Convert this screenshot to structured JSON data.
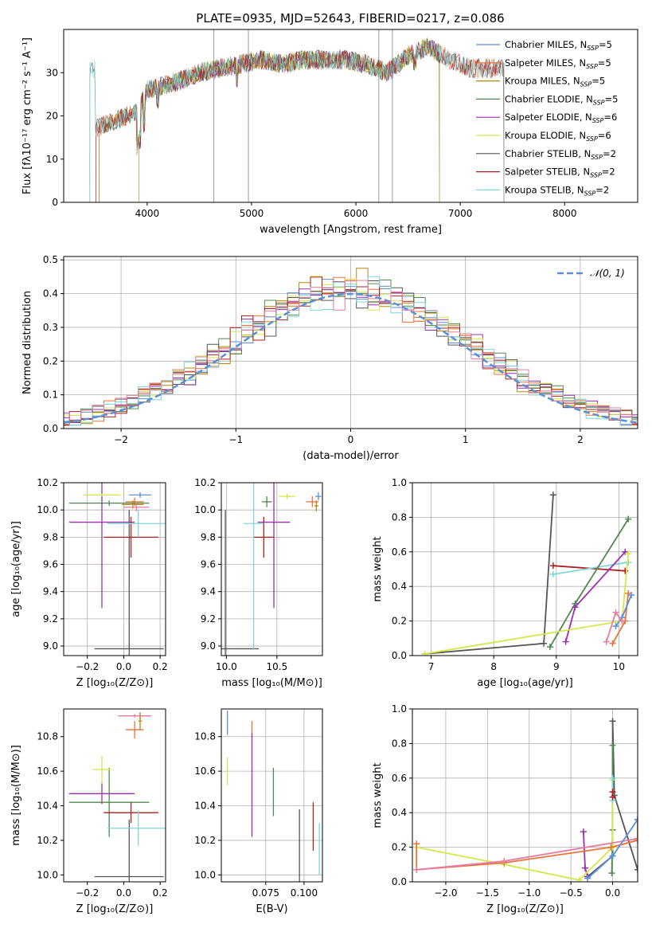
{
  "figure_title": "PLATE=0935, MJD=52643, FIBERID=0217, z=0.086",
  "series_colors": {
    "Chabrier MILES": "#5b8fd6",
    "Salpeter MILES": "#e8733a",
    "Kroupa MILES": "#b8860b",
    "Chabrier ELODIE": "#4f8a4f",
    "Salpeter ELODIE": "#9b2fae",
    "Kroupa ELODIE": "#d4e84a",
    "Chabrier STELIB": "#555555",
    "Salpeter STELIB": "#b01f1f",
    "Kroupa STELIB": "#7fd6d8",
    "Kroupa ELODIE (ages)": "#e87ca0"
  },
  "chart_data": [
    {
      "id": "spectrum",
      "type": "line",
      "xlabel": "wavelength [Angstrom, rest frame]",
      "ylabel": "Flux [fλ10⁻¹⁷ erg cm⁻² s⁻¹ A⁻¹]",
      "xlim": [
        3200,
        8700
      ],
      "ylim": [
        0,
        40
      ],
      "xticks": [
        "4000",
        "5000",
        "6000",
        "7000",
        "8000"
      ],
      "yticks": [
        "0",
        "10",
        "20",
        "30"
      ],
      "legend_position": "top-right",
      "legend": [
        {
          "label": "Chabrier MILES, N",
          "sub": "SSP",
          "suffix": "=5",
          "series": "Chabrier MILES"
        },
        {
          "label": "Salpeter MILES, N",
          "sub": "SSP",
          "suffix": "=5",
          "series": "Salpeter MILES"
        },
        {
          "label": "Kroupa MILES, N",
          "sub": "SSP",
          "suffix": "=5",
          "series": "Kroupa MILES"
        },
        {
          "label": "Chabrier ELODIE, N",
          "sub": "SSP",
          "suffix": "=5",
          "series": "Chabrier ELODIE"
        },
        {
          "label": "Salpeter ELODIE, N",
          "sub": "SSP",
          "suffix": "=6",
          "series": "Salpeter ELODIE"
        },
        {
          "label": "Kroupa ELODIE, N",
          "sub": "SSP",
          "suffix": "=6",
          "series": "Kroupa ELODIE"
        },
        {
          "label": "Chabrier STELIB, N",
          "sub": "SSP",
          "suffix": "=2",
          "series": "Chabrier STELIB"
        },
        {
          "label": "Salpeter STELIB, N",
          "sub": "SSP",
          "suffix": "=2",
          "series": "Salpeter STELIB"
        },
        {
          "label": "Kroupa STELIB, N",
          "sub": "SSP",
          "suffix": "=2",
          "series": "Kroupa STELIB"
        }
      ],
      "continuum_x": [
        3500,
        3700,
        3900,
        4000,
        4150,
        4300,
        4500,
        4700,
        4900,
        5100,
        5300,
        5500,
        5700,
        5900,
        6100,
        6300,
        6500,
        6700,
        6900,
        7100,
        7300
      ],
      "continuum_y": [
        17,
        19,
        21,
        26,
        27,
        28,
        30,
        31,
        32,
        33,
        32,
        33,
        33,
        33,
        32,
        30,
        34,
        36,
        33,
        31,
        31
      ]
    },
    {
      "id": "residuals",
      "type": "histogram",
      "xlabel": "(data-model)/error",
      "ylabel": "Normed distribution",
      "xlim": [
        -2.5,
        2.5
      ],
      "ylim": [
        0,
        0.51
      ],
      "xticks": [
        "−2",
        "−1",
        "0",
        "1",
        "2"
      ],
      "yticks": [
        "0.0",
        "0.1",
        "0.2",
        "0.3",
        "0.4",
        "0.5"
      ],
      "grid": true,
      "legend_position": "top-right",
      "reference_label": "𝒩(0, 1)",
      "bin_width": 0.1
    },
    {
      "id": "age_vs_Z",
      "type": "errorbar",
      "xlabel": "Z [log₁₀(Z/Z⊙)]",
      "ylabel": "age  [log₁₀(age/yr)]",
      "xlim": [
        -0.33,
        0.23
      ],
      "ylim": [
        8.93,
        10.2
      ],
      "xticks": [
        "−0.2",
        "0.0",
        "0.2"
      ],
      "yticks": [
        "9.0",
        "9.2",
        "9.4",
        "9.6",
        "9.8",
        "10.0",
        "10.2"
      ],
      "grid": true,
      "points": [
        {
          "series": "Chabrier MILES",
          "x": 0.09,
          "y": 10.11,
          "xerr": 0.06,
          "yerr": 0.02
        },
        {
          "series": "Salpeter MILES",
          "x": 0.06,
          "y": 10.06,
          "xerr": 0.05,
          "yerr": 0.03
        },
        {
          "series": "Kroupa MILES",
          "x": 0.05,
          "y": 10.04,
          "xerr": 0.06,
          "yerr": 0.03
        },
        {
          "series": "Chabrier ELODIE",
          "x": -0.08,
          "y": 10.05,
          "xerr": 0.22,
          "yerr": 0.02
        },
        {
          "series": "Salpeter ELODIE",
          "x": -0.12,
          "y": 9.91,
          "xerr": 0.18,
          "yerr": 0.63
        },
        {
          "series": "Kroupa ELODIE",
          "x": -0.12,
          "y": 10.11,
          "xerr": 0.1,
          "yerr": 0.01
        },
        {
          "series": "Chabrier STELIB",
          "x": 0.03,
          "y": 8.98,
          "xerr": 0.19,
          "yerr": 1.02
        },
        {
          "series": "Salpeter STELIB",
          "x": 0.04,
          "y": 9.8,
          "xerr": 0.15,
          "yerr": 0.15
        },
        {
          "series": "Kroupa STELIB",
          "x": 0.08,
          "y": 9.9,
          "xerr": 0.17,
          "yerr": 0.1
        },
        {
          "series": "Kroupa ELODIE (ages)",
          "x": 0.07,
          "y": 10.02,
          "xerr": 0.07,
          "yerr": 0.03
        }
      ]
    },
    {
      "id": "age_vs_mass",
      "type": "errorbar",
      "xlabel": "mass [log₁₀(M/M⊙)]",
      "xlim": [
        9.95,
        10.95
      ],
      "ylim": [
        8.93,
        10.2
      ],
      "xticks": [
        "10.0",
        "10.5"
      ],
      "yticks": [
        "9.0",
        "9.2",
        "9.4",
        "9.6",
        "9.8",
        "10.0",
        "10.2"
      ],
      "grid": true,
      "points": [
        {
          "series": "Chabrier MILES",
          "x": 10.91,
          "y": 10.1,
          "xerr": 0.03,
          "yerr": 0.03
        },
        {
          "series": "Salpeter MILES",
          "x": 10.85,
          "y": 10.06,
          "xerr": 0.06,
          "yerr": 0.04
        },
        {
          "series": "Kroupa MILES",
          "x": 10.89,
          "y": 10.03,
          "xerr": 0.02,
          "yerr": 0.04
        },
        {
          "series": "Chabrier ELODIE",
          "x": 10.4,
          "y": 10.06,
          "xerr": 0.05,
          "yerr": 0.04
        },
        {
          "series": "Salpeter ELODIE",
          "x": 10.47,
          "y": 9.91,
          "xerr": 0.16,
          "yerr": 0.63
        },
        {
          "series": "Kroupa ELODIE",
          "x": 10.6,
          "y": 10.1,
          "xerr": 0.08,
          "yerr": 0.02
        },
        {
          "series": "Chabrier STELIB",
          "x": 9.99,
          "y": 8.98,
          "xerr": 0.33,
          "yerr": 1.02
        },
        {
          "series": "Salpeter STELIB",
          "x": 10.37,
          "y": 9.8,
          "xerr": 0.1,
          "yerr": 0.15
        },
        {
          "series": "Kroupa STELIB",
          "x": 10.27,
          "y": 9.9,
          "xerr": 0.1,
          "yerr": 0.93
        }
      ]
    },
    {
      "id": "massweight_vs_age",
      "type": "line",
      "xlabel": "age  [log₁₀(age/yr)]",
      "ylabel": "mass weight",
      "xlim": [
        6.7,
        10.3
      ],
      "ylim": [
        0,
        1
      ],
      "xticks": [
        "7",
        "8",
        "9",
        "10"
      ],
      "yticks": [
        "0.0",
        "0.2",
        "0.4",
        "0.6",
        "0.8",
        "1.0"
      ],
      "grid": true,
      "series": [
        {
          "series": "Chabrier STELIB",
          "x": [
            6.9,
            8.8,
            8.95
          ],
          "y": [
            0.01,
            0.07,
            0.93
          ]
        },
        {
          "series": "Salpeter STELIB",
          "x": [
            8.95,
            10.1
          ],
          "y": [
            0.52,
            0.49
          ]
        },
        {
          "series": "Kroupa STELIB",
          "x": [
            8.95,
            10.15
          ],
          "y": [
            0.47,
            0.54
          ]
        },
        {
          "series": "Chabrier ELODIE",
          "x": [
            8.9,
            9.3,
            10.15
          ],
          "y": [
            0.05,
            0.3,
            0.79
          ]
        },
        {
          "series": "Salpeter ELODIE",
          "x": [
            9.15,
            9.3,
            10.1
          ],
          "y": [
            0.08,
            0.28,
            0.6
          ]
        },
        {
          "series": "Kroupa ELODIE",
          "x": [
            6.9,
            10.05,
            10.15
          ],
          "y": [
            0.01,
            0.2,
            0.59
          ]
        },
        {
          "series": "Salpeter MILES",
          "x": [
            9.9,
            10.1,
            10.15
          ],
          "y": [
            0.07,
            0.2,
            0.36
          ]
        },
        {
          "series": "Chabrier MILES",
          "x": [
            9.95,
            10.05,
            10.2
          ],
          "y": [
            0.17,
            0.22,
            0.35
          ]
        },
        {
          "series": "Kroupa ELODIE (ages)",
          "x": [
            9.8,
            9.95,
            10.05
          ],
          "y": [
            0.08,
            0.25,
            0.2
          ]
        }
      ]
    },
    {
      "id": "mass_vs_Z",
      "type": "errorbar",
      "xlabel": "Z [log₁₀(Z/Z⊙)]",
      "ylabel": "mass [log₁₀(M/M⊙)]",
      "xlim": [
        -0.33,
        0.23
      ],
      "ylim": [
        9.96,
        10.96
      ],
      "xticks": [
        "−0.2",
        "0.0",
        "0.2"
      ],
      "yticks": [
        "10.0",
        "10.2",
        "10.4",
        "10.6",
        "10.8"
      ],
      "grid": false,
      "points": [
        {
          "series": "Chabrier MILES",
          "x": 0.09,
          "y": 10.92,
          "xerr": 0.06,
          "yerr": 0.02
        },
        {
          "series": "Salpeter MILES",
          "x": 0.06,
          "y": 10.84,
          "xerr": 0.05,
          "yerr": 0.05
        },
        {
          "series": "Kroupa MILES",
          "x": 0.09,
          "y": 10.89,
          "xerr": 0.01,
          "yerr": 0.05
        },
        {
          "series": "Chabrier ELODIE",
          "x": -0.08,
          "y": 10.42,
          "xerr": 0.22,
          "yerr": 0.2
        },
        {
          "series": "Salpeter ELODIE",
          "x": -0.12,
          "y": 10.47,
          "xerr": 0.18,
          "yerr": 0.06
        },
        {
          "series": "Kroupa ELODIE",
          "x": -0.12,
          "y": 10.61,
          "xerr": 0.05,
          "yerr": 0.08
        },
        {
          "series": "Chabrier STELIB",
          "x": 0.03,
          "y": 9.99,
          "xerr": 0.19,
          "yerr": 0.33
        },
        {
          "series": "Salpeter STELIB",
          "x": 0.04,
          "y": 10.36,
          "xerr": 0.15,
          "yerr": 0.06
        },
        {
          "series": "Kroupa STELIB",
          "x": 0.08,
          "y": 10.27,
          "xerr": 0.17,
          "yerr": 0.1
        },
        {
          "series": "Kroupa ELODIE (ages)",
          "x": 0.06,
          "y": 10.92,
          "xerr": 0.09,
          "yerr": 0.01
        }
      ]
    },
    {
      "id": "mass_vs_ebv",
      "type": "errorbar",
      "xlabel": "E(B-V)",
      "xlim": [
        0.046,
        0.112
      ],
      "ylim": [
        9.96,
        10.96
      ],
      "xticks": [
        "0.075",
        "0.100"
      ],
      "yticks": [
        "10.0",
        "10.2",
        "10.4",
        "10.6",
        "10.8"
      ],
      "grid": true,
      "points": [
        {
          "series": "Chabrier MILES",
          "x": 0.05,
          "y": 10.88,
          "xerr": 0,
          "yerr": 0.07
        },
        {
          "series": "Salpeter MILES",
          "x": 0.066,
          "y": 10.84,
          "xerr": 0,
          "yerr": 0.05
        },
        {
          "series": "Kroupa ELODIE",
          "x": 0.05,
          "y": 10.6,
          "xerr": 0,
          "yerr": 0.08
        },
        {
          "series": "Salpeter ELODIE",
          "x": 0.066,
          "y": 10.52,
          "xerr": 0,
          "yerr": 0.3
        },
        {
          "series": "Chabrier ELODIE",
          "x": 0.08,
          "y": 10.48,
          "xerr": 0,
          "yerr": 0.14
        },
        {
          "series": "Chabrier STELIB",
          "x": 0.097,
          "y": 10.17,
          "xerr": 0,
          "yerr": 0.21
        },
        {
          "series": "Salpeter STELIB",
          "x": 0.106,
          "y": 10.28,
          "xerr": 0,
          "yerr": 0.14
        },
        {
          "series": "Kroupa STELIB",
          "x": 0.11,
          "y": 10.15,
          "xerr": 0,
          "yerr": 0.15
        }
      ]
    },
    {
      "id": "massweight_vs_Z",
      "type": "line",
      "xlabel": "Z [log₁₀(Z/Z⊙)]",
      "ylabel": "mass weight",
      "xlim": [
        -2.4,
        0.3
      ],
      "ylim": [
        0,
        1
      ],
      "xticks": [
        "−2.0",
        "−1.5",
        "−1.0",
        "−0.5",
        "0.0"
      ],
      "yticks": [
        "0.0",
        "0.2",
        "0.4",
        "0.6",
        "0.8",
        "1.0"
      ],
      "grid": true,
      "series": [
        {
          "series": "Chabrier STELIB",
          "x": [
            -0.3,
            0.0,
            0.0,
            0.02,
            0.3
          ],
          "y": [
            0.03,
            0.15,
            0.93,
            0.5,
            0.07
          ]
        },
        {
          "series": "Chabrier ELODIE",
          "x": [
            -0.01,
            0.0,
            0.0
          ],
          "y": [
            0.05,
            0.3,
            0.79
          ]
        },
        {
          "series": "Salpeter ELODIE",
          "x": [
            -0.35,
            -0.33,
            -0.3
          ],
          "y": [
            0.29,
            0.08,
            0.03
          ]
        },
        {
          "series": "Kroupa ELODIE",
          "x": [
            -2.35,
            -1.3,
            -0.4,
            0.0,
            0.0
          ],
          "y": [
            0.2,
            0.1,
            0.01,
            0.2,
            0.59
          ]
        },
        {
          "series": "Salpeter MILES",
          "x": [
            -2.35,
            -2.35,
            -1.3,
            -0.02,
            0.3,
            0.3
          ],
          "y": [
            0.22,
            0.07,
            0.11,
            0.2,
            0.24,
            0.36
          ]
        },
        {
          "series": "Kroupa ELODIE (ages)",
          "x": [
            -2.35,
            -1.3,
            0.3
          ],
          "y": [
            0.07,
            0.12,
            0.25
          ]
        },
        {
          "series": "Chabrier MILES",
          "x": [
            -0.3,
            0.0,
            0.3
          ],
          "y": [
            0.02,
            0.15,
            0.36
          ]
        },
        {
          "series": "Kroupa STELIB",
          "x": [
            0.0,
            0.0
          ],
          "y": [
            0.47,
            0.6
          ]
        },
        {
          "series": "Salpeter STELIB",
          "x": [
            0.0,
            0.0
          ],
          "y": [
            0.49,
            0.52
          ]
        }
      ]
    }
  ]
}
